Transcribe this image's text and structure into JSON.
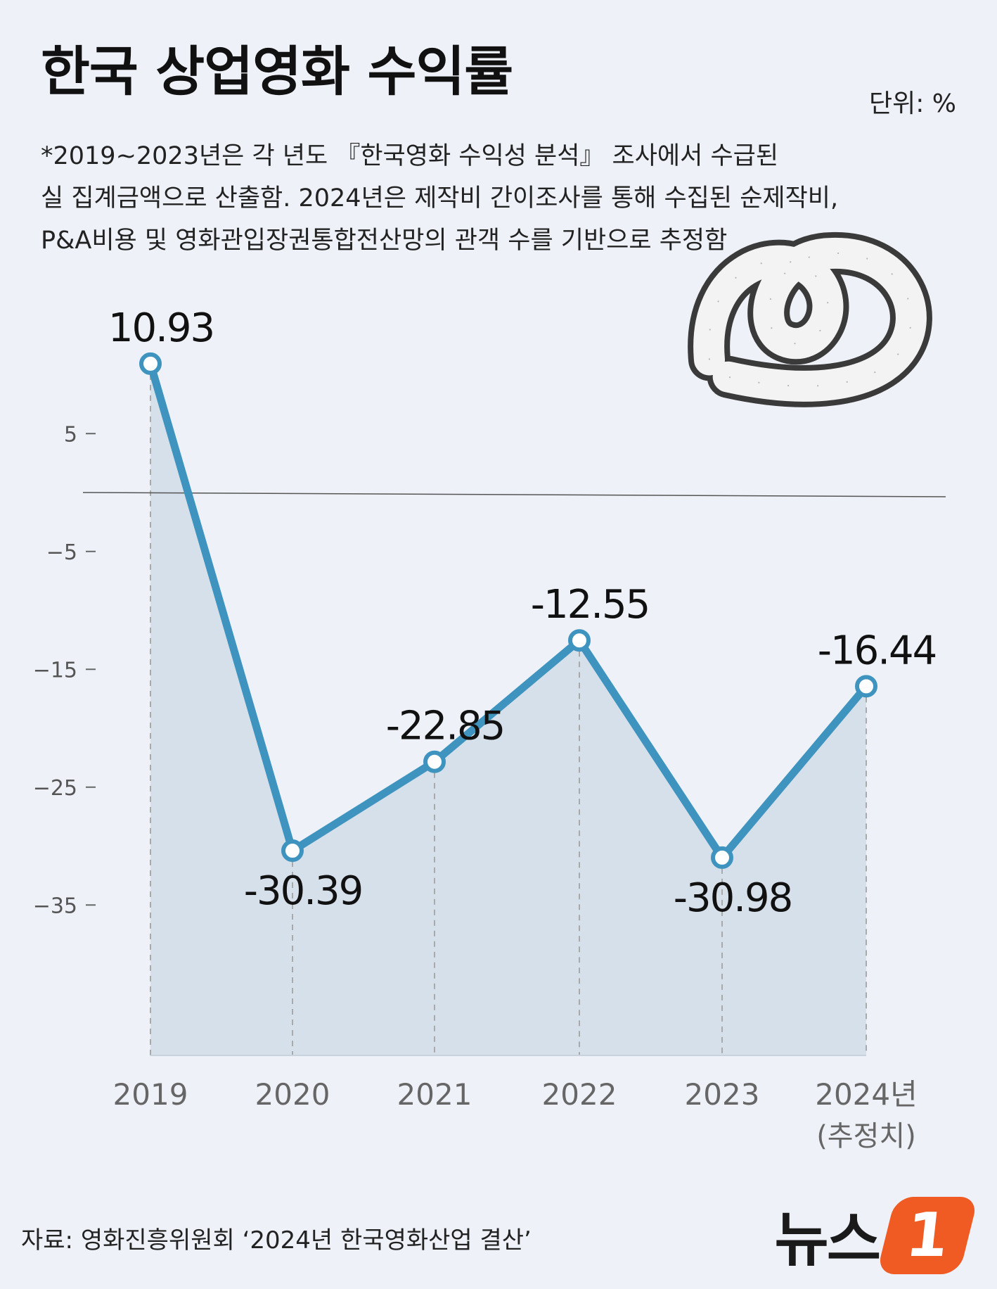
{
  "header": {
    "title": "한국 상업영화 수익률",
    "unit": "단위: %"
  },
  "note": {
    "lines": [
      "*2019~2023년은 각 년도 『한국영화 수익성 분석』 조사에서 수급된",
      "실 집계금액으로 산출함. 2024년은 제작비 간이조사를 통해 수집된 순제작비,",
      "P&A비용 및 영화관입장권통합전산망의 관객 수를 기반으로 추정함"
    ]
  },
  "footer": {
    "source": "자료: 영화진흥위원회 ‘2024년 한국영화산업 결산’",
    "logo_text": "뉴스",
    "logo_mark": "1"
  },
  "colors": {
    "line": "#3e94bf",
    "area": "#d3dee9",
    "background": "#eef2f8",
    "logo_accent": "#ef5b22"
  },
  "decoration": {
    "icon": "film-reel-icon"
  },
  "chart_data": {
    "type": "line",
    "title": "한국 상업영화 수익률",
    "x": [
      "2019",
      "2020",
      "2021",
      "2022",
      "2023",
      "2024년"
    ],
    "x_sublabels": [
      "",
      "",
      "",
      "",
      "",
      "(추정치)"
    ],
    "values": [
      10.93,
      -30.39,
      -22.85,
      -12.55,
      -30.98,
      -16.44
    ],
    "value_labels": [
      "10.93",
      "-30.39",
      "-22.85",
      "-12.55",
      "-30.98",
      "-16.44"
    ],
    "y_ticks": [
      5,
      -5,
      -15,
      -25,
      -35
    ],
    "y_tick_labels": [
      "5",
      "−5",
      "−15",
      "−25",
      "−35"
    ],
    "ylim": [
      -48,
      16
    ],
    "reference_line": 0,
    "grid": false,
    "area_fill": true,
    "xlabel": "",
    "ylabel": ""
  }
}
